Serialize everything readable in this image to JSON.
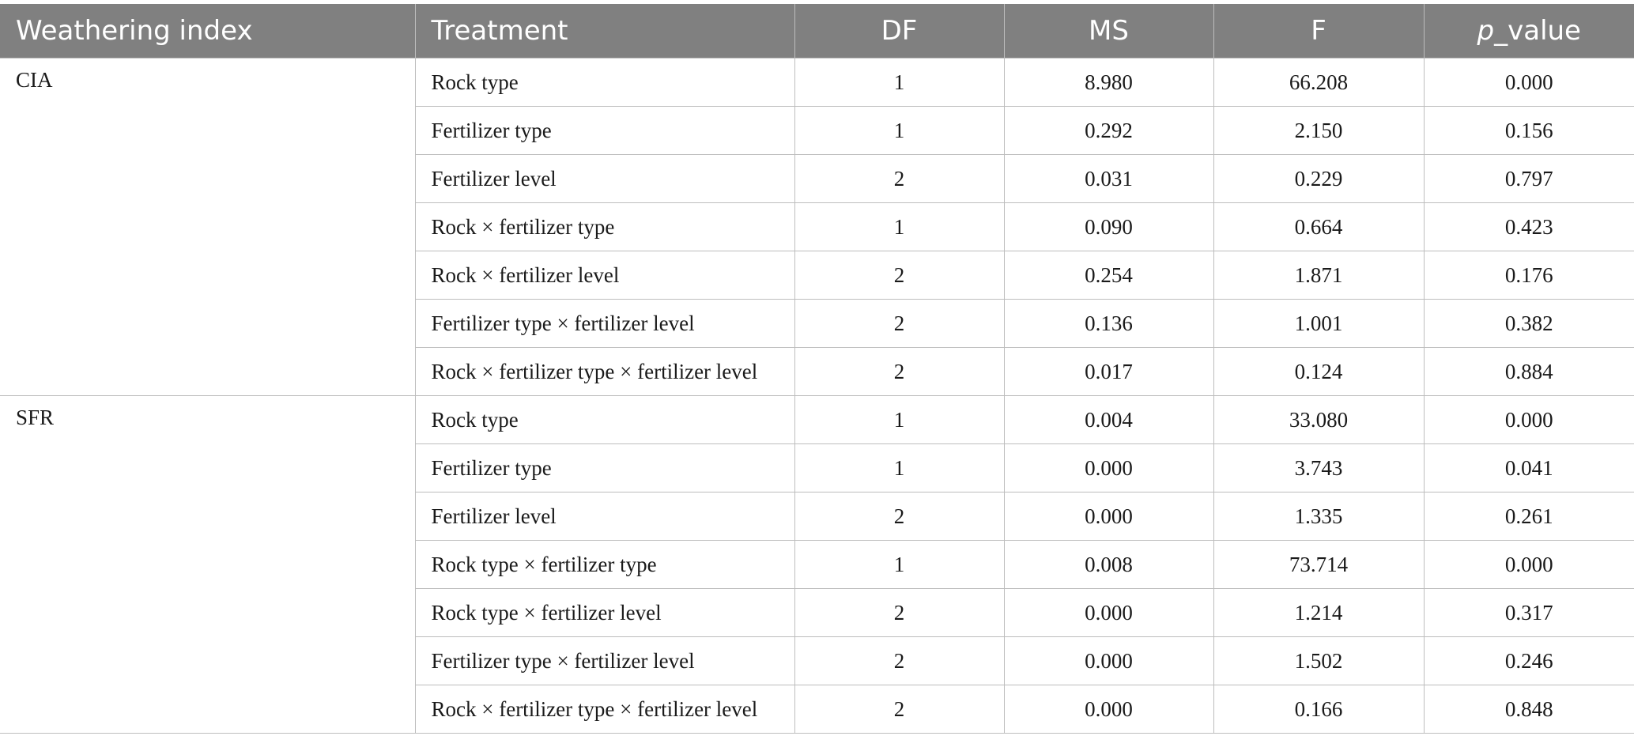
{
  "table": {
    "headers": {
      "weathering_index": "Weathering index",
      "treatment": "Treatment",
      "df": "DF",
      "ms": "MS",
      "f": "F",
      "p_italic": "p",
      "p_suffix": "_value"
    },
    "groups": [
      {
        "index": "CIA",
        "rows": [
          {
            "treatment": "Rock type",
            "df": "1",
            "ms": "8.980",
            "f": "66.208",
            "p": "0.000"
          },
          {
            "treatment": "Fertilizer type",
            "df": "1",
            "ms": "0.292",
            "f": "2.150",
            "p": "0.156"
          },
          {
            "treatment": "Fertilizer level",
            "df": "2",
            "ms": "0.031",
            "f": "0.229",
            "p": "0.797"
          },
          {
            "treatment": "Rock × fertilizer type",
            "df": "1",
            "ms": "0.090",
            "f": "0.664",
            "p": "0.423"
          },
          {
            "treatment": "Rock × fertilizer level",
            "df": "2",
            "ms": "0.254",
            "f": "1.871",
            "p": "0.176"
          },
          {
            "treatment": "Fertilizer type × fertilizer level",
            "df": "2",
            "ms": "0.136",
            "f": "1.001",
            "p": "0.382"
          },
          {
            "treatment": "Rock × fertilizer type × fertilizer level",
            "df": "2",
            "ms": "0.017",
            "f": "0.124",
            "p": "0.884"
          }
        ]
      },
      {
        "index": "SFR",
        "rows": [
          {
            "treatment": "Rock type",
            "df": "1",
            "ms": "0.004",
            "f": "33.080",
            "p": "0.000"
          },
          {
            "treatment": "Fertilizer type",
            "df": "1",
            "ms": "0.000",
            "f": "3.743",
            "p": "0.041"
          },
          {
            "treatment": "Fertilizer level",
            "df": "2",
            "ms": "0.000",
            "f": "1.335",
            "p": "0.261"
          },
          {
            "treatment": "Rock type × fertilizer type",
            "df": "1",
            "ms": "0.008",
            "f": "73.714",
            "p": "0.000"
          },
          {
            "treatment": "Rock type × fertilizer level",
            "df": "2",
            "ms": "0.000",
            "f": "1.214",
            "p": "0.317"
          },
          {
            "treatment": "Fertilizer type × fertilizer level",
            "df": "2",
            "ms": "0.000",
            "f": "1.502",
            "p": "0.246"
          },
          {
            "treatment": "Rock × fertilizer type × fertilizer level",
            "df": "2",
            "ms": "0.000",
            "f": "0.166",
            "p": "0.848"
          }
        ]
      }
    ]
  },
  "colors": {
    "header_bg": "#808080",
    "header_text": "#ffffff",
    "grid": "#bdbdbd",
    "body_text": "#1a1a1a"
  }
}
